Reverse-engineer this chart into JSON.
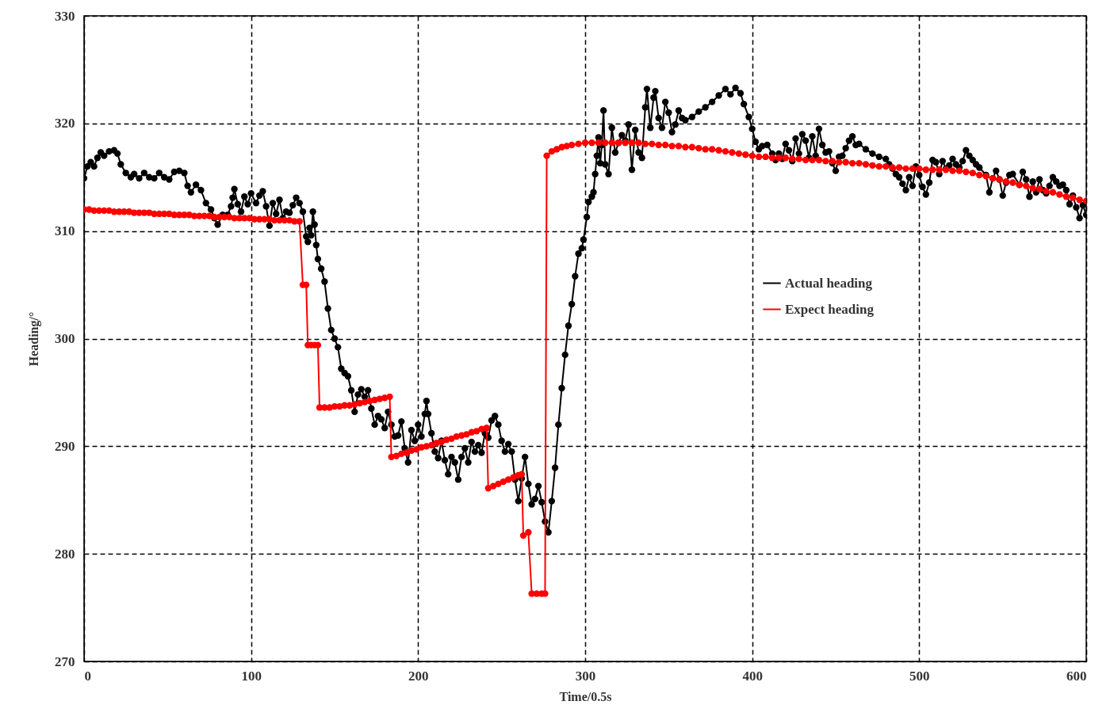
{
  "chart_data": {
    "type": "line",
    "xlabel": "Time/0.5s",
    "ylabel": "Heading/°",
    "xlim": [
      0,
      600
    ],
    "ylim": [
      270,
      330
    ],
    "xticks": [
      0,
      100,
      200,
      300,
      400,
      500,
      600
    ],
    "yticks": [
      270,
      280,
      290,
      300,
      310,
      320,
      330
    ],
    "grid": true,
    "legend": "right",
    "marker": "circle",
    "line_style": "solid",
    "series": [
      {
        "name": "Actual heading",
        "color": "#000000",
        "x": [
          0,
          2,
          4,
          6,
          8,
          10,
          12,
          15,
          18,
          20,
          22,
          25,
          28,
          30,
          33,
          36,
          39,
          42,
          45,
          48,
          51,
          54,
          57,
          60,
          62,
          64,
          67,
          70,
          73,
          76,
          78,
          80,
          83,
          86,
          88,
          89,
          90,
          92,
          94,
          96,
          98,
          100,
          103,
          105,
          107,
          109,
          111,
          113,
          115,
          117,
          119,
          121,
          123,
          125,
          127,
          129,
          131,
          133,
          134,
          135,
          136,
          137,
          138,
          139,
          140,
          142,
          144,
          146,
          148,
          150,
          152,
          154,
          156,
          158,
          160,
          162,
          164,
          166,
          168,
          170,
          172,
          174,
          176,
          178,
          180,
          182,
          184,
          186,
          188,
          190,
          192,
          194,
          196,
          198,
          200,
          202,
          204,
          205,
          206,
          208,
          210,
          212,
          214,
          216,
          218,
          220,
          222,
          224,
          226,
          228,
          230,
          232,
          234,
          236,
          238,
          240,
          242,
          244,
          246,
          248,
          250,
          252,
          254,
          256,
          258,
          260,
          262,
          264,
          266,
          268,
          270,
          272,
          274,
          276,
          278,
          280,
          282,
          284,
          286,
          288,
          290,
          292,
          294,
          296,
          298,
          299,
          301,
          302,
          304,
          305,
          306,
          307,
          308,
          309,
          310,
          311,
          312,
          314,
          316,
          318,
          320,
          322,
          324,
          326,
          328,
          330,
          332,
          334,
          336,
          337,
          339,
          341,
          342,
          344,
          346,
          348,
          350,
          352,
          354,
          356,
          358,
          360,
          364,
          368,
          372,
          376,
          380,
          384,
          387,
          390,
          393,
          395,
          398,
          400,
          402,
          404,
          406,
          409,
          412,
          414,
          416,
          418,
          420,
          422,
          424,
          426,
          428,
          430,
          432,
          434,
          436,
          438,
          440,
          442,
          444,
          446,
          448,
          450,
          452,
          454,
          456,
          458,
          460,
          462,
          464,
          468,
          472,
          476,
          480,
          482,
          484,
          486,
          488,
          490,
          492,
          494,
          496,
          498,
          500,
          502,
          504,
          506,
          508,
          510,
          512,
          514,
          516,
          518,
          520,
          522,
          524,
          526,
          528,
          530,
          532,
          534,
          536,
          540,
          542,
          544,
          546,
          548,
          550,
          552,
          554,
          556,
          560,
          562,
          564,
          566,
          568,
          570,
          572,
          574,
          576,
          578,
          580,
          582,
          584,
          586,
          588,
          590,
          592,
          594,
          596,
          598,
          600
        ],
        "values": [
          314.9,
          316,
          316.4,
          316,
          316.8,
          317.3,
          317,
          317.4,
          317.5,
          317.2,
          316.2,
          315.4,
          315,
          315.3,
          314.9,
          315.4,
          315,
          314.9,
          315.4,
          315,
          314.8,
          315.5,
          315.6,
          315.4,
          314.2,
          313.6,
          314.3,
          313.8,
          312.6,
          312,
          311.2,
          310.6,
          311.5,
          311.5,
          312.3,
          313.1,
          313.9,
          312.5,
          311.8,
          313.2,
          312.5,
          313.5,
          312.6,
          313.3,
          313.7,
          312.3,
          310.5,
          312.6,
          311.6,
          312.9,
          311.2,
          311.8,
          311.7,
          312.4,
          313.1,
          312.6,
          311.8,
          309.5,
          309,
          310.3,
          309.6,
          311.8,
          310.6,
          308.7,
          307.4,
          306.5,
          305.3,
          302.8,
          300.8,
          300,
          299.2,
          297.2,
          296.8,
          296.5,
          295.2,
          293.2,
          294.8,
          295.3,
          294.6,
          295.2,
          293.5,
          292,
          292.8,
          292.5,
          291.7,
          293.2,
          292,
          290.9,
          291,
          292.3,
          289.8,
          288.5,
          291.5,
          290.5,
          292,
          290.9,
          293,
          294.2,
          293,
          291.2,
          289.5,
          288.9,
          290.5,
          288.7,
          287.4,
          289,
          288.5,
          286.9,
          289,
          289.8,
          288.5,
          290.4,
          289.5,
          290.1,
          289.4,
          291.2,
          290.8,
          292.4,
          292.8,
          292,
          290.5,
          289.5,
          290.2,
          289.5,
          286.9,
          284.9,
          287,
          289,
          286.5,
          284.6,
          285.1,
          286.3,
          284.8,
          283,
          282,
          284.9,
          288,
          292,
          295.4,
          298.5,
          301.2,
          303.2,
          305.8,
          307.9,
          308.4,
          309.2,
          311.3,
          312.7,
          313.2,
          313.6,
          315.3,
          317,
          318.7,
          316.3,
          318,
          321.2,
          316.2,
          315.3,
          319.6,
          317.3,
          318.2,
          318.9,
          318.4,
          319.9,
          315.7,
          319.4,
          317.3,
          316.8,
          321.5,
          323.2,
          319.6,
          322.4,
          323,
          320.5,
          319.6,
          322,
          321,
          319.2,
          319.9,
          321.2,
          320.5,
          320.3,
          320.6,
          321.1,
          321.5,
          322,
          322.6,
          323.2,
          322.7,
          323.3,
          322.8,
          321.8,
          320.6,
          319.5,
          318.3,
          317.6,
          317.9,
          318,
          317.2,
          316.6,
          317.2,
          316.7,
          318.1,
          317.5,
          316.5,
          318.6,
          317.2,
          319,
          318.4,
          316.8,
          318.8,
          317,
          319.5,
          318,
          317.3,
          317.4,
          316.3,
          315.6,
          316.9,
          317,
          317.7,
          318.4,
          318.8,
          318,
          318.1,
          317.6,
          317.2,
          316.9,
          316.7,
          316.2,
          315.8,
          315.3,
          315,
          314.4,
          313.8,
          315,
          314.2,
          316,
          315.2,
          314.1,
          313.4,
          314.5,
          316.6,
          316.4,
          315.3,
          316.5,
          315.8,
          316.1,
          316.7,
          316.2,
          315.9,
          316.5,
          317.5,
          317,
          316.6,
          316.2,
          315.9,
          315.2,
          313.6,
          314.9,
          315.6,
          314.8,
          313.3,
          314.5,
          315.2,
          315.3,
          314.3,
          315.5,
          314.8,
          313.2,
          314.6,
          313.6,
          314.8,
          313.8,
          313.5,
          314.2,
          315,
          314.6,
          314.2,
          314.3,
          313.8,
          312.5,
          313.3,
          312.2,
          311.2,
          312.4,
          311.5
        ]
      },
      {
        "name": "Expect heading",
        "color": "#ff0000",
        "x": [
          0,
          3,
          6,
          9,
          12,
          15,
          18,
          21,
          24,
          27,
          30,
          33,
          36,
          39,
          42,
          45,
          48,
          51,
          54,
          57,
          60,
          63,
          66,
          69,
          72,
          75,
          78,
          81,
          84,
          87,
          90,
          93,
          96,
          99,
          102,
          105,
          108,
          111,
          114,
          117,
          120,
          123,
          126,
          129,
          131,
          133,
          134,
          136,
          138,
          140,
          141,
          144,
          147,
          150,
          153,
          156,
          159,
          162,
          165,
          168,
          171,
          174,
          177,
          180,
          183,
          184,
          187,
          190,
          193,
          196,
          199,
          202,
          205,
          208,
          211,
          214,
          217,
          220,
          223,
          226,
          229,
          232,
          235,
          238,
          241,
          242,
          245,
          248,
          251,
          254,
          257,
          260,
          262,
          263,
          266,
          268,
          271,
          274,
          276,
          277,
          280,
          283,
          286,
          289,
          292,
          296,
          300,
          304,
          308,
          312,
          316,
          320,
          324,
          328,
          332,
          336,
          340,
          344,
          348,
          352,
          356,
          360,
          364,
          368,
          372,
          376,
          380,
          384,
          388,
          392,
          396,
          400,
          404,
          408,
          412,
          416,
          420,
          424,
          428,
          432,
          436,
          440,
          444,
          448,
          452,
          456,
          460,
          464,
          468,
          472,
          476,
          480,
          484,
          488,
          492,
          496,
          500,
          504,
          508,
          512,
          516,
          520,
          524,
          528,
          532,
          536,
          540,
          544,
          548,
          552,
          556,
          560,
          564,
          568,
          572,
          576,
          580,
          584,
          588,
          592,
          596,
          600
        ],
        "values": [
          312.0,
          312.0,
          311.9,
          311.9,
          311.9,
          311.9,
          311.8,
          311.8,
          311.8,
          311.8,
          311.7,
          311.7,
          311.7,
          311.7,
          311.6,
          311.6,
          311.6,
          311.6,
          311.5,
          311.5,
          311.5,
          311.5,
          311.4,
          311.4,
          311.4,
          311.4,
          311.3,
          311.3,
          311.3,
          311.3,
          311.2,
          311.2,
          311.2,
          311.2,
          311.1,
          311.1,
          311.1,
          311.1,
          311.0,
          311.0,
          311.0,
          311.0,
          310.9,
          310.9,
          305.0,
          305.0,
          299.4,
          299.4,
          299.4,
          299.4,
          293.6,
          293.6,
          293.6,
          293.7,
          293.7,
          293.8,
          293.8,
          293.9,
          294.0,
          294.1,
          294.2,
          294.3,
          294.4,
          294.5,
          294.6,
          289.0,
          289.1,
          289.3,
          289.4,
          289.6,
          289.7,
          289.9,
          290.0,
          290.1,
          290.3,
          290.4,
          290.6,
          290.7,
          290.9,
          291.0,
          291.1,
          291.3,
          291.4,
          291.6,
          291.7,
          286.1,
          286.3,
          286.5,
          286.7,
          286.9,
          287.1,
          287.3,
          287.4,
          281.7,
          282.0,
          276.3,
          276.3,
          276.3,
          276.3,
          317.0,
          317.4,
          317.6,
          317.8,
          317.9,
          318.0,
          318.1,
          318.2,
          318.2,
          318.2,
          318.2,
          318.2,
          318.2,
          318.2,
          318.2,
          318.2,
          318.1,
          318.1,
          318.0,
          318.0,
          317.9,
          317.9,
          317.8,
          317.8,
          317.7,
          317.6,
          317.6,
          317.5,
          317.4,
          317.3,
          317.2,
          317.1,
          317.0,
          316.9,
          316.9,
          316.8,
          316.8,
          316.8,
          316.7,
          316.7,
          316.6,
          316.6,
          316.6,
          316.5,
          316.5,
          316.4,
          316.4,
          316.3,
          316.3,
          316.2,
          316.1,
          316.0,
          316.0,
          315.9,
          315.9,
          315.8,
          315.8,
          315.8,
          315.7,
          315.7,
          315.7,
          315.7,
          315.6,
          315.6,
          315.5,
          315.4,
          315.2,
          315.1,
          314.9,
          314.8,
          314.6,
          314.5,
          314.3,
          314.2,
          314.0,
          313.9,
          313.7,
          313.6,
          313.4,
          313.2,
          313.1,
          312.9,
          312.8
        ]
      }
    ]
  }
}
